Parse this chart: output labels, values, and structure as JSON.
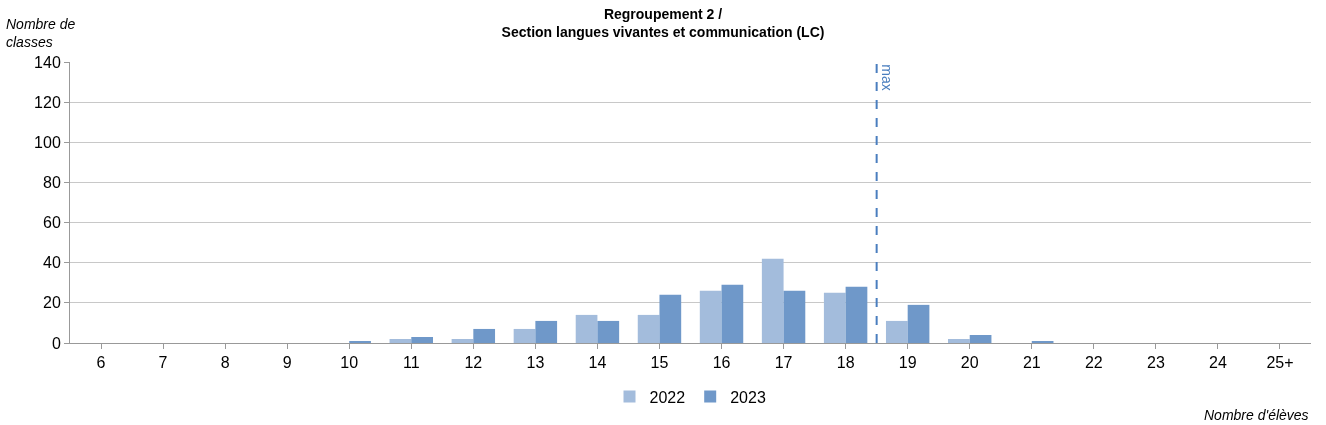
{
  "chart_data": {
    "type": "bar",
    "title": "Regroupement 2 /\nSection langues vivantes et communication (LC)",
    "ylabel": "Nombre de\nclasses",
    "xlabel": "Nombre d'élèves",
    "categories": [
      "6",
      "7",
      "8",
      "9",
      "10",
      "11",
      "12",
      "13",
      "14",
      "15",
      "16",
      "17",
      "18",
      "19",
      "20",
      "21",
      "22",
      "23",
      "24",
      "25+"
    ],
    "series": [
      {
        "name": "2022",
        "color": "#a3bcdc",
        "values": [
          0,
          0,
          0,
          0,
          0,
          2,
          2,
          7,
          14,
          14,
          26,
          42,
          25,
          11,
          2,
          0,
          0,
          0,
          0,
          0
        ]
      },
      {
        "name": "2023",
        "color": "#6f98c9",
        "values": [
          0,
          0,
          0,
          0,
          1,
          3,
          7,
          11,
          11,
          24,
          29,
          26,
          28,
          19,
          4,
          1,
          0,
          0,
          0,
          0
        ]
      }
    ],
    "ylim": [
      0,
      140
    ],
    "yticks": [
      0,
      20,
      40,
      60,
      80,
      100,
      120,
      140
    ],
    "grid": "y",
    "legend": "bottom",
    "ref_lines": [
      {
        "axis": "x",
        "value": "19",
        "label": "max",
        "color": "#4a7ebf",
        "line_style": "dashed"
      }
    ]
  }
}
